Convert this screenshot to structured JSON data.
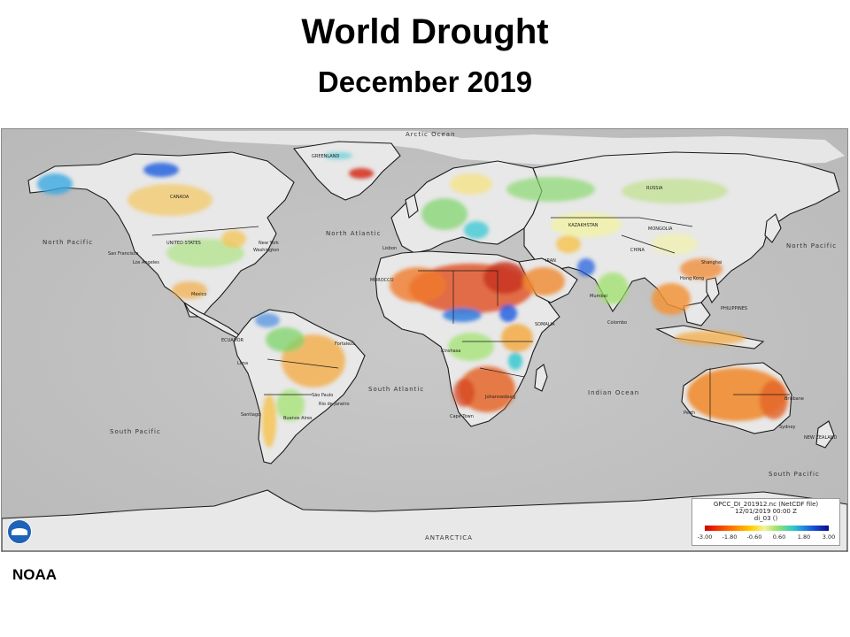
{
  "header": {
    "title": "World Drought",
    "subtitle": "December 2019"
  },
  "map": {
    "ocean_labels": [
      {
        "key": "arctic",
        "text": "Arctic Ocean"
      },
      {
        "key": "north_pacific_w",
        "text": "North Pacific"
      },
      {
        "key": "north_pacific_e",
        "text": "North Pacific"
      },
      {
        "key": "north_atlantic",
        "text": "North Atlantic"
      },
      {
        "key": "south_atlantic",
        "text": "South Atlantic"
      },
      {
        "key": "indian_ocean",
        "text": "Indian Ocean"
      },
      {
        "key": "south_pacific_w",
        "text": "South Pacific"
      },
      {
        "key": "south_pacific_e",
        "text": "South Pacific"
      },
      {
        "key": "antarctica",
        "text": "ANTARCTICA"
      }
    ],
    "country_labels": [
      {
        "key": "greenland",
        "text": "GREENLAND"
      },
      {
        "key": "canada",
        "text": "CANADA"
      },
      {
        "key": "united_states",
        "text": "UNITED STATES"
      },
      {
        "key": "russia",
        "text": "RUSSIA"
      },
      {
        "key": "kazakhstan",
        "text": "KAZAKHSTAN"
      },
      {
        "key": "mongolia",
        "text": "MONGOLIA"
      },
      {
        "key": "china",
        "text": "CHINA"
      },
      {
        "key": "iran",
        "text": "IRAN"
      },
      {
        "key": "somalia",
        "text": "SOMALIA"
      },
      {
        "key": "morocco",
        "text": "MOROCCO"
      },
      {
        "key": "ecuador",
        "text": "ECUADOR"
      },
      {
        "key": "philippines",
        "text": "PHILIPPINES"
      },
      {
        "key": "new_zealand",
        "text": "NEW ZEALAND"
      }
    ],
    "city_labels": [
      {
        "key": "los_angeles",
        "text": "Los Angeles"
      },
      {
        "key": "san_francisco",
        "text": "San Francisco"
      },
      {
        "key": "new_york",
        "text": "New York"
      },
      {
        "key": "washington",
        "text": "Washington"
      },
      {
        "key": "mexico",
        "text": "Mexico"
      },
      {
        "key": "lisbon",
        "text": "Lisbon"
      },
      {
        "key": "fortaleza",
        "text": "Fortaleza"
      },
      {
        "key": "lima",
        "text": "Lima"
      },
      {
        "key": "sao_paulo",
        "text": "São Paulo"
      },
      {
        "key": "rio",
        "text": "Rio de Janeiro"
      },
      {
        "key": "santiago",
        "text": "Santiago"
      },
      {
        "key": "buenos_aires",
        "text": "Buenos Aires"
      },
      {
        "key": "cape_town",
        "text": "Cape Town"
      },
      {
        "key": "johannesburg",
        "text": "Johannesburg"
      },
      {
        "key": "kinshasa",
        "text": "Kinshasa"
      },
      {
        "key": "mumbai",
        "text": "Mumbai"
      },
      {
        "key": "colombo",
        "text": "Colombo"
      },
      {
        "key": "hong_kong",
        "text": "Hong Kong"
      },
      {
        "key": "shanghai",
        "text": "Shanghai"
      },
      {
        "key": "perth",
        "text": "Perth"
      },
      {
        "key": "brisbane",
        "text": "Brisbane"
      },
      {
        "key": "sydney",
        "text": "Sydney"
      }
    ],
    "legend": {
      "file": "GPCC_DI_201912.nc (NetCDF file)",
      "time": "12/01/2019 00:00 Z",
      "variable": "di_03 ()",
      "scale_min": -3.0,
      "scale_max": 3.0,
      "colors": [
        "#d40000",
        "#ff6a00",
        "#ffd200",
        "#f3f3a0",
        "#9ee26a",
        "#29c6d0",
        "#1a5adf",
        "#0a0a8e"
      ],
      "ticks": [
        "-3.00",
        "-1.80",
        "-0.60",
        "0.60",
        "1.80",
        "3.00"
      ]
    },
    "drought_regions": [
      {
        "key": "sahel_north_africa",
        "level": -2.4,
        "color": "#e0552a"
      },
      {
        "key": "east_africa",
        "level": -1.5,
        "color": "#f08a2a"
      },
      {
        "key": "southern_africa",
        "level": -2.0,
        "color": "#e4662a"
      },
      {
        "key": "australia",
        "level": -1.8,
        "color": "#f08c30"
      },
      {
        "key": "brazil",
        "level": -1.2,
        "color": "#f4a83c"
      },
      {
        "key": "southeast_asia",
        "level": -1.4,
        "color": "#f29438"
      },
      {
        "key": "greenland_edge",
        "level": -2.6,
        "color": "#d42a1a"
      },
      {
        "key": "andes_chile",
        "level": -1.0,
        "color": "#f6c24a"
      },
      {
        "key": "west_africa_wet",
        "level": 1.6,
        "color": "#2f7de0"
      },
      {
        "key": "central_asia_wet",
        "level": 0.8,
        "color": "#8ad870"
      },
      {
        "key": "south_america_wet",
        "level": 0.9,
        "color": "#7cd46a"
      },
      {
        "key": "alaska_wet",
        "level": 1.2,
        "color": "#38a8e0"
      }
    ]
  },
  "footer": {
    "source": "NOAA",
    "logo_name": "noaa-logo"
  }
}
